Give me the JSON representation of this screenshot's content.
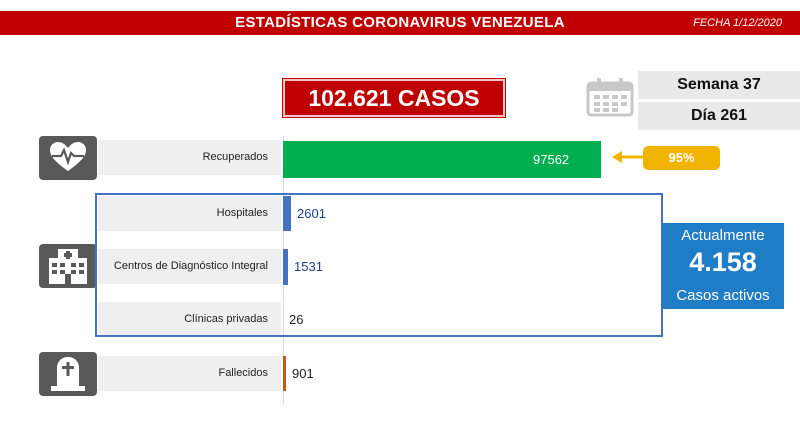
{
  "header": {
    "title": "ESTADÍSTICAS CORONAVIRUS VENEZUELA",
    "date": "FECHA 1/12/2020"
  },
  "summary": {
    "total_cases": "102.621 CASOS",
    "week": "Semana 37",
    "day": "Día 261",
    "recovered_pct": "95%",
    "active_label_top": "Actualmente",
    "active_value": "4.158",
    "active_label_bottom": "Casos activos"
  },
  "icons": [
    "calendar-icon",
    "heart-pulse-icon",
    "hospital-icon",
    "tombstone-icon"
  ],
  "colors": {
    "header_red": "#c00000",
    "recovered_green": "#00b050",
    "hospital_blue": "#4472c4",
    "deceased_orange": "#c55a11",
    "percent_yellow": "#f0b400",
    "active_blue": "#1f7cc6",
    "icon_gray": "#595959"
  },
  "chart_data": {
    "type": "bar",
    "orientation": "horizontal",
    "categories": [
      "Recuperados",
      "Hospitales",
      "Centros de Diagnóstico Integral",
      "Clínicas privadas",
      "Fallecidos"
    ],
    "values": [
      97562,
      2601,
      1531,
      26,
      901
    ],
    "value_labels": [
      "97562",
      "2601",
      "1531",
      "26",
      "901"
    ],
    "xlim": [
      0,
      97562
    ]
  }
}
